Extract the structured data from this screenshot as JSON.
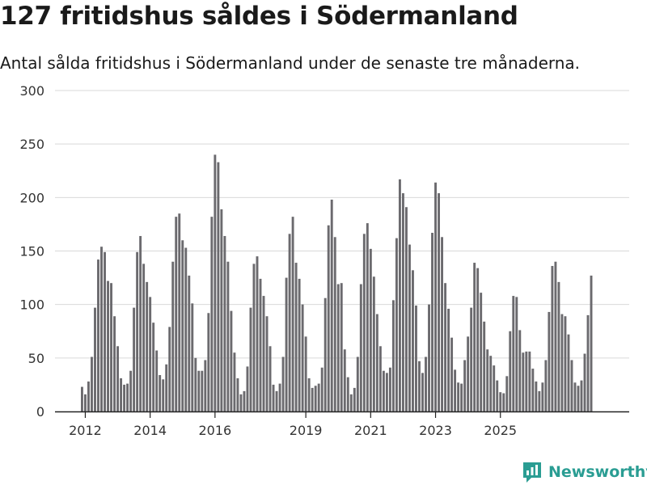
{
  "page": {
    "title": "127 fritidshus såldes i Södermanland",
    "subtitle": "Antal sålda fritidshus i Södermanland under de senaste tre månaderna.",
    "brand": "Newsworthy"
  },
  "colors": {
    "bar": "#6b6a6e",
    "highlight": "#23998f",
    "grid": "#d9d9d9",
    "axis": "#222222"
  },
  "chart_data": {
    "type": "bar",
    "ylim": [
      0,
      300
    ],
    "y_ticks": [
      "0",
      "50",
      "100",
      "150",
      "200",
      "250",
      "300"
    ],
    "x_ticks": [
      {
        "label": "2012",
        "index": 1
      },
      {
        "label": "2014",
        "index": 21
      },
      {
        "label": "2016",
        "index": 41
      },
      {
        "label": "2019",
        "index": 69
      },
      {
        "label": "2021",
        "index": 89
      },
      {
        "label": "2023",
        "index": 109
      },
      {
        "label": "2025",
        "index": 129
      }
    ],
    "values": [
      23,
      16,
      28,
      51,
      97,
      142,
      154,
      149,
      122,
      120,
      89,
      61,
      31,
      25,
      26,
      38,
      97,
      149,
      164,
      138,
      121,
      107,
      83,
      57,
      34,
      30,
      44,
      79,
      140,
      182,
      185,
      160,
      153,
      127,
      101,
      50,
      38,
      38,
      48,
      92,
      182,
      240,
      233,
      189,
      164,
      140,
      94,
      55,
      31,
      16,
      19,
      42,
      97,
      138,
      145,
      124,
      108,
      89,
      61,
      25,
      19,
      26,
      51,
      125,
      166,
      182,
      139,
      124,
      100,
      70,
      31,
      22,
      24,
      26,
      41,
      106,
      174,
      198,
      163,
      119,
      120,
      58,
      32,
      16,
      22,
      51,
      119,
      166,
      176,
      152,
      126,
      91,
      61,
      38,
      36,
      41,
      104,
      162,
      217,
      204,
      191,
      156,
      132,
      99,
      47,
      36,
      51,
      100,
      167,
      214,
      204,
      163,
      120,
      96,
      69,
      39,
      27,
      26,
      48,
      70,
      97,
      139,
      134,
      111,
      84,
      58,
      52,
      43,
      29,
      18,
      17,
      33,
      75,
      108,
      107,
      76,
      55,
      56,
      56,
      40,
      28,
      19,
      27,
      48,
      93,
      136,
      140,
      121,
      91,
      89,
      72,
      48,
      27,
      24,
      29,
      54,
      90,
      127
    ],
    "highlight_index": 160,
    "annotation": "127"
  }
}
